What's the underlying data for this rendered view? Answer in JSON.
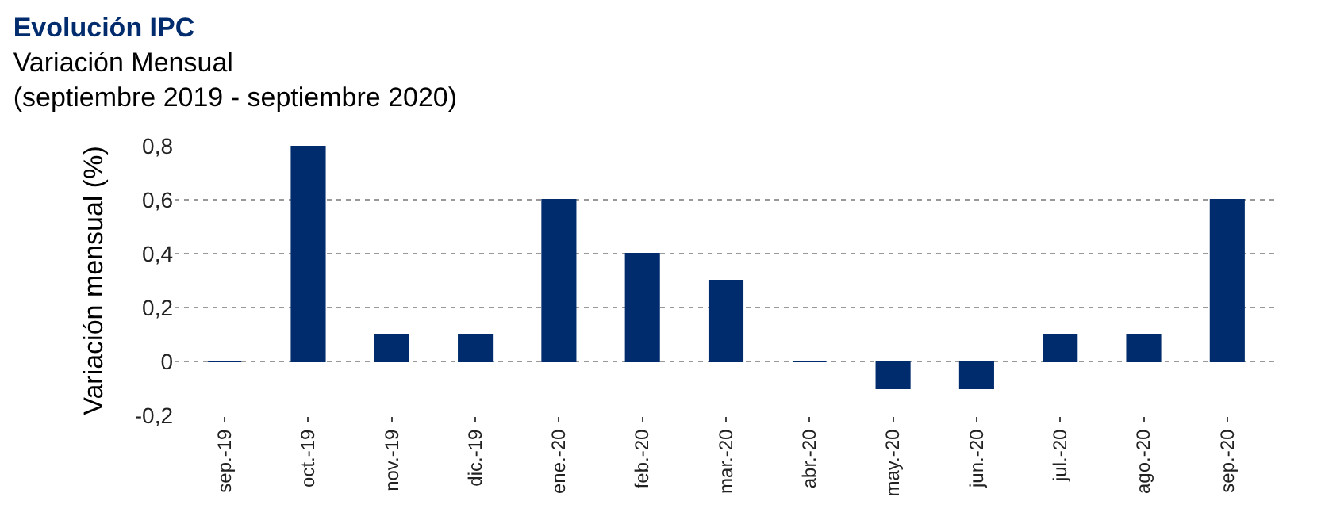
{
  "chart_data": {
    "type": "bar",
    "title": "Evolución IPC",
    "subtitle": "Variación Mensual\n(septiembre 2019 - septiembre 2020)",
    "ylabel": "Variación mensual (%)",
    "categories": [
      "sep.-19",
      "oct.-19",
      "nov.-19",
      "dic.-19",
      "ene.-20",
      "feb.-20",
      "mar.-20",
      "abr.-20",
      "may.-20",
      "jun.-20",
      "jul.-20",
      "ago.-20",
      "sep.-20"
    ],
    "values": [
      0,
      0.8,
      0.1,
      0.1,
      0.6,
      0.4,
      0.3,
      0,
      -0.1,
      -0.1,
      0.1,
      0.1,
      0.6
    ],
    "color": "#002c6e",
    "ylim": [
      -0.2,
      0.8
    ],
    "yticks": [
      {
        "value": -0.2,
        "label": "-0,2"
      },
      0,
      {
        "value": 0.2,
        "label": "0,2"
      },
      {
        "value": 0.4,
        "label": "0,4"
      },
      {
        "value": 0.6,
        "label": "0,6"
      },
      {
        "value": 0.8,
        "label": "0,8"
      }
    ],
    "grid": "y"
  }
}
